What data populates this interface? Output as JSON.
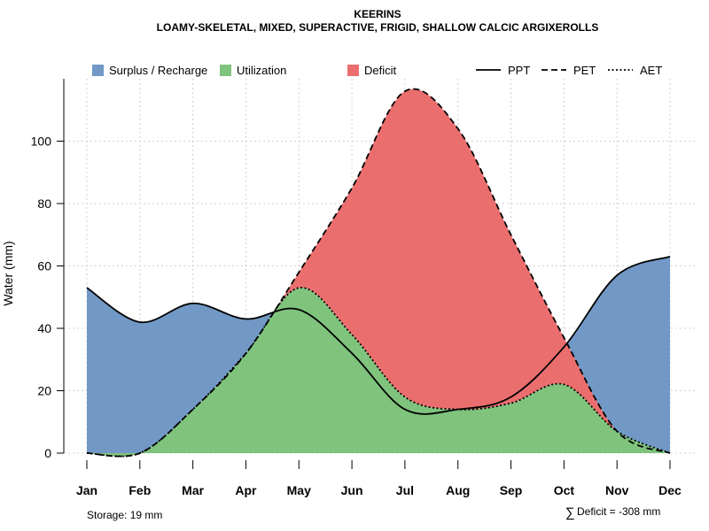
{
  "chart_data": {
    "type": "area",
    "title": "KEERINS",
    "subtitle": "LOAMY-SKELETAL, MIXED, SUPERACTIVE, FRIGID, SHALLOW CALCIC ARGIXEROLLS",
    "ylabel": "Water (mm)",
    "xlabel": "",
    "ylim": [
      0,
      120
    ],
    "yticks": [
      0,
      20,
      40,
      60,
      80,
      100
    ],
    "categories": [
      "Jan",
      "Feb",
      "Mar",
      "Apr",
      "May",
      "Jun",
      "Jul",
      "Aug",
      "Sep",
      "Oct",
      "Nov",
      "Dec"
    ],
    "series": [
      {
        "name": "PPT",
        "values": [
          53,
          42,
          48,
          43,
          46,
          32,
          14,
          14,
          18,
          34,
          57,
          63
        ]
      },
      {
        "name": "PET",
        "values": [
          0,
          0,
          14,
          32,
          58,
          85,
          116,
          104,
          70,
          37,
          7,
          0
        ]
      },
      {
        "name": "AET",
        "values": [
          0,
          0,
          14,
          32,
          53,
          38,
          18,
          14,
          16,
          22,
          7,
          0
        ]
      }
    ],
    "legend": {
      "areas": [
        {
          "label": "Surplus / Recharge",
          "color": "#7299C6"
        },
        {
          "label": "Utilization",
          "color": "#7FC37D"
        },
        {
          "label": "Deficit",
          "color": "#EB6E6E"
        }
      ],
      "lines": [
        {
          "label": "PPT",
          "style": "solid"
        },
        {
          "label": "PET",
          "style": "dashed"
        },
        {
          "label": "AET",
          "style": "dotted"
        }
      ]
    },
    "annotations": {
      "storage": "Storage: 19 mm",
      "deficit_symbol": "∑",
      "deficit": "Deficit = -308 mm"
    }
  }
}
